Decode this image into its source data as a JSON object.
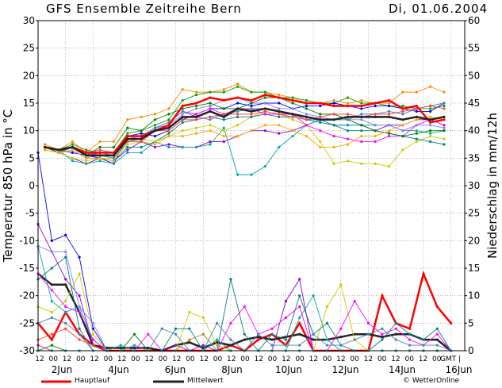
{
  "header": {
    "title": "GFS Ensemble Zeitreihe Bern",
    "date": "Di, 01.06.2004"
  },
  "legend": {
    "hauptlauf": "Hauptlauf",
    "mittelwert": "Mittelwert",
    "credit": "© WetterOnline"
  },
  "colors": {
    "hauptlauf": "#ff0000",
    "mittelwert": "#222222",
    "members": [
      "#ff8c00",
      "#00aa00",
      "#0000ff",
      "#9400d3",
      "#00aaaa",
      "#cccc00",
      "#008080",
      "#ff00ff",
      "#8080ff",
      "#008000",
      "#ffa500",
      "#4682b4",
      "#ff4040",
      "#ff1493",
      "#b8860b",
      "#00ced1"
    ]
  },
  "chart_data": {
    "type": "line",
    "title": "GFS Ensemble Zeitreihe Bern",
    "ylabel": "Temperatur 850 hPa in °C",
    "y2label": "Niederschlag in mm/12h",
    "ylim": [
      -30,
      30
    ],
    "yticks": [
      -30,
      -25,
      -20,
      -15,
      -10,
      -5,
      0,
      5,
      10,
      15,
      20,
      25,
      30
    ],
    "y2lim": [
      0,
      60
    ],
    "y2ticks": [
      0,
      5,
      10,
      15,
      20,
      25,
      30,
      35,
      40,
      45,
      50,
      55,
      60
    ],
    "xlabel": "",
    "x_tick_labels": [
      "12",
      "00",
      "12",
      "00",
      "12",
      "00",
      "12",
      "00",
      "12",
      "00",
      "12",
      "00",
      "12",
      "00",
      "12",
      "00",
      "12",
      "00",
      "12",
      "00",
      "12",
      "00",
      "12",
      "00",
      "12",
      "00",
      "12",
      "00",
      "12",
      "00",
      "GMT |"
    ],
    "date_labels": [
      "2Jun",
      "4Jun",
      "6Jun",
      "8Jun",
      "10Jun",
      "12Jun",
      "14Jun",
      "16Jun"
    ],
    "grid": true,
    "x_step_hours": 12,
    "temperature_series": [
      {
        "name": "Hauptlauf",
        "values": [
          7,
          6.5,
          7,
          6,
          6,
          6,
          9,
          9,
          10,
          11,
          14.5,
          15,
          16,
          15.5,
          16,
          15.5,
          16.5,
          16,
          15.5,
          15,
          15,
          14.5,
          14.5,
          14.5,
          15,
          15.5,
          14,
          14.5,
          11.5,
          12
        ]
      },
      {
        "name": "Mittelwert",
        "values": [
          7,
          6.5,
          7,
          5.5,
          5.5,
          5.5,
          8.5,
          8.5,
          10,
          10.5,
          12.5,
          12.5,
          13.5,
          12.5,
          14,
          13.5,
          14,
          13.5,
          13,
          12.5,
          12,
          12,
          12.5,
          12.5,
          12.5,
          12.5,
          12,
          12.5,
          12,
          12.5
        ]
      },
      {
        "values": [
          7.5,
          6.5,
          8,
          6,
          8,
          8,
          12,
          12.5,
          13,
          14,
          17.5,
          17,
          17,
          17.5,
          18.5,
          17,
          17,
          16.5,
          16,
          15,
          15,
          15.5,
          15,
          15.5,
          15,
          15,
          17,
          17,
          18,
          17
        ]
      },
      {
        "values": [
          7,
          6.5,
          7.5,
          6.5,
          6,
          6,
          9.5,
          10,
          11,
          12,
          15.5,
          16.5,
          17,
          17,
          18,
          17,
          17,
          16,
          16,
          15.5,
          15,
          15,
          16,
          15,
          15,
          14.5,
          14.5,
          14,
          14,
          14.5
        ]
      },
      {
        "values": [
          7,
          6.5,
          6,
          5.5,
          5,
          4,
          9,
          9.5,
          9,
          10,
          12,
          13,
          14,
          14,
          15,
          14.5,
          15,
          15,
          14,
          14.5,
          14.5,
          15,
          14.5,
          14,
          14.5,
          14.5,
          14,
          13.5,
          13.5,
          15
        ]
      },
      {
        "values": [
          7,
          6,
          5,
          4,
          5,
          4.5,
          6.5,
          8,
          7,
          7.5,
          7,
          7,
          8,
          8,
          9,
          10,
          10,
          9.5,
          10,
          11,
          12,
          11,
          11,
          11,
          10,
          11,
          11,
          12,
          12,
          11
        ]
      },
      {
        "values": [
          7,
          6.5,
          4.5,
          4,
          4.5,
          4,
          6,
          6,
          8,
          7,
          7,
          7,
          7.5,
          10.5,
          2,
          2,
          3.5,
          7,
          9,
          11,
          12,
          11,
          11,
          11,
          11,
          11,
          10,
          10,
          9.5,
          10
        ]
      },
      {
        "values": [
          6.5,
          6,
          5,
          4.5,
          5,
          5,
          7.5,
          8,
          7.5,
          9,
          10,
          10.5,
          11,
          10,
          11,
          12.5,
          13.5,
          13,
          12,
          11,
          8,
          4,
          4.5,
          4,
          4,
          3.5,
          6.5,
          8,
          9,
          8.5
        ]
      },
      {
        "values": [
          7,
          6,
          6.5,
          5,
          5,
          4.5,
          7,
          7,
          8,
          9.5,
          11.5,
          12,
          12.5,
          12,
          12.5,
          12.5,
          13,
          12.5,
          12.5,
          12,
          11.5,
          11,
          10,
          10,
          10,
          9.5,
          9,
          8.5,
          8,
          7.5
        ]
      },
      {
        "values": [
          7,
          6,
          7,
          5.5,
          6,
          5.5,
          9,
          9,
          10.5,
          11.5,
          13.5,
          13,
          14,
          13,
          14,
          14,
          13,
          13,
          13,
          11,
          10,
          9,
          8.5,
          8,
          8,
          9,
          9,
          11,
          12,
          11
        ]
      },
      {
        "values": [
          7,
          6,
          6.5,
          5,
          6,
          5.5,
          8.5,
          9,
          10.5,
          11,
          13,
          14,
          14.5,
          15.5,
          16,
          15,
          15,
          14,
          14,
          13,
          12.5,
          12,
          12,
          12,
          11,
          11,
          10,
          11,
          11,
          10.5
        ]
      },
      {
        "values": [
          7,
          6,
          7,
          5.5,
          7,
          7,
          10.5,
          10,
          12,
          13,
          14,
          14.5,
          15,
          14,
          14,
          15,
          16,
          16,
          15,
          14,
          13,
          13,
          12,
          11,
          10,
          9.5,
          9,
          9.5,
          10,
          10
        ]
      },
      {
        "values": [
          6.5,
          6,
          6.5,
          5,
          5,
          4.5,
          8,
          8.5,
          8,
          9,
          9,
          9.5,
          10,
          9,
          9,
          10,
          11,
          11,
          10,
          9,
          7,
          7,
          7.5,
          9,
          9,
          10,
          11,
          12,
          12.5,
          12
        ]
      },
      {
        "values": [
          7,
          6.5,
          7,
          6,
          5.5,
          5,
          8,
          8.5,
          10.5,
          11.5,
          13.5,
          12.5,
          12,
          13,
          13.5,
          14,
          14,
          13.5,
          13,
          12,
          12,
          12,
          12,
          13,
          13,
          13.5,
          13,
          14,
          14.5,
          15
        ]
      },
      {
        "values": [
          7,
          6.5,
          7,
          6,
          6.5,
          6,
          8,
          8,
          10,
          10,
          12,
          12,
          12.5,
          13,
          13,
          13,
          13.5,
          13,
          12.5,
          12,
          12.5,
          13,
          13,
          12.5,
          13,
          13,
          13.5,
          14,
          14.5,
          14
        ]
      }
    ],
    "precip_series": [
      {
        "name": "Hauptlauf",
        "values": [
          5,
          2,
          7,
          3,
          1,
          0,
          0,
          0,
          0,
          0,
          0,
          0,
          0,
          0,
          1,
          0,
          2,
          3,
          1,
          5,
          0,
          0,
          0,
          0,
          0,
          10,
          5,
          4,
          14,
          8,
          5
        ]
      },
      {
        "name": "Mittelwert",
        "values": [
          14,
          12,
          12,
          7,
          1,
          0.5,
          0.5,
          0.5,
          0.5,
          0,
          1,
          1.5,
          0.5,
          1.5,
          1,
          2,
          2.5,
          2,
          2.5,
          3,
          2,
          2,
          2.5,
          3,
          3,
          2.5,
          3,
          3,
          2,
          2,
          0
        ]
      },
      {
        "values": [
          36,
          20,
          21,
          17,
          4,
          0,
          0,
          0,
          0,
          0,
          0,
          0,
          0,
          0,
          0,
          0,
          0,
          0,
          0,
          0,
          0,
          0,
          0,
          0,
          0,
          0,
          0,
          0,
          0,
          0,
          0
        ]
      },
      {
        "values": [
          23,
          18,
          13,
          10,
          1,
          0,
          0,
          0,
          0,
          0,
          1,
          0,
          1,
          0,
          0,
          0,
          0,
          0,
          9,
          13,
          0,
          0,
          0,
          0,
          0,
          0,
          0,
          0,
          0,
          0,
          0
        ]
      },
      {
        "values": [
          19,
          9,
          7,
          8,
          2,
          0,
          1,
          0,
          0,
          0,
          0,
          0,
          0,
          2,
          0,
          0,
          0,
          0,
          0,
          6,
          10,
          2,
          0,
          0,
          0,
          0,
          0,
          0,
          0,
          0,
          0
        ]
      },
      {
        "values": [
          8,
          7,
          9,
          14,
          3,
          0,
          0,
          0,
          0,
          0,
          0,
          7,
          6,
          1,
          0,
          0,
          0,
          0,
          0,
          0,
          0,
          8,
          12,
          2,
          0,
          0,
          0,
          0,
          0,
          0,
          0
        ]
      },
      {
        "values": [
          13,
          15,
          17,
          4,
          0,
          0,
          0,
          0,
          0,
          0,
          4,
          4,
          0,
          0,
          13,
          3,
          0,
          3,
          2,
          10,
          3,
          5,
          1,
          0,
          0,
          2,
          5,
          3,
          2,
          4,
          0
        ]
      },
      {
        "values": [
          14,
          11,
          8,
          7,
          2,
          0,
          0,
          0,
          3,
          0,
          0,
          0,
          0,
          0,
          5,
          8,
          3,
          4,
          6,
          8,
          0,
          0,
          4,
          9,
          5,
          3,
          4,
          2,
          1,
          3,
          0
        ]
      },
      {
        "values": [
          19,
          18,
          18,
          8,
          5,
          0,
          0,
          0,
          0,
          0,
          0,
          0,
          0,
          0,
          0,
          0,
          0,
          0,
          0,
          0,
          0,
          0,
          0,
          0,
          0,
          0,
          0,
          0,
          0,
          0,
          0
        ]
      },
      {
        "values": [
          0,
          1,
          0,
          0,
          0,
          0,
          0,
          3,
          0,
          0,
          0,
          0,
          0,
          0,
          0,
          0,
          0,
          0,
          0,
          0,
          0,
          0,
          0,
          0,
          0,
          0,
          0,
          0,
          0,
          0,
          0
        ]
      },
      {
        "values": [
          0,
          0,
          0,
          0,
          0,
          0,
          0,
          0,
          0,
          0,
          0,
          0,
          0,
          0,
          0,
          0,
          0,
          0,
          0,
          0,
          0,
          0,
          0,
          0,
          0,
          0,
          0,
          0,
          0,
          0,
          0
        ]
      },
      {
        "values": [
          5,
          6,
          5,
          3,
          0,
          0,
          0,
          1,
          0,
          4,
          3,
          0,
          0,
          5,
          2,
          0,
          3,
          1,
          1,
          1,
          3,
          1,
          1,
          2,
          3,
          4,
          2,
          1,
          1,
          1,
          0
        ]
      },
      {
        "values": [
          2,
          3,
          4,
          2,
          1,
          0,
          0,
          0,
          0,
          0,
          0,
          0,
          0,
          0,
          0,
          0,
          0,
          0,
          0,
          0,
          0,
          0,
          0,
          0,
          0,
          0,
          0,
          0,
          0,
          0,
          0
        ]
      },
      {
        "values": [
          1,
          0,
          0,
          0,
          0,
          0,
          0,
          0,
          0,
          0,
          0,
          0,
          0,
          0,
          0,
          0,
          0,
          0,
          0,
          0,
          0,
          0,
          0,
          0,
          0,
          0,
          0,
          0,
          0,
          0,
          0
        ]
      },
      {
        "values": [
          0,
          0,
          0,
          0,
          0,
          0,
          0,
          0,
          0,
          0,
          0,
          2,
          3,
          0,
          0,
          0,
          0,
          0,
          0,
          0,
          0,
          0,
          0,
          0,
          0,
          0,
          0,
          0,
          0,
          0,
          0
        ]
      },
      {
        "values": [
          0,
          0,
          0,
          0,
          0,
          0,
          0,
          0,
          0,
          0,
          0,
          0,
          0,
          0,
          0,
          0,
          0,
          0,
          0,
          0,
          0,
          0,
          0,
          0,
          0,
          0,
          0,
          0,
          0,
          0,
          0
        ]
      }
    ]
  }
}
